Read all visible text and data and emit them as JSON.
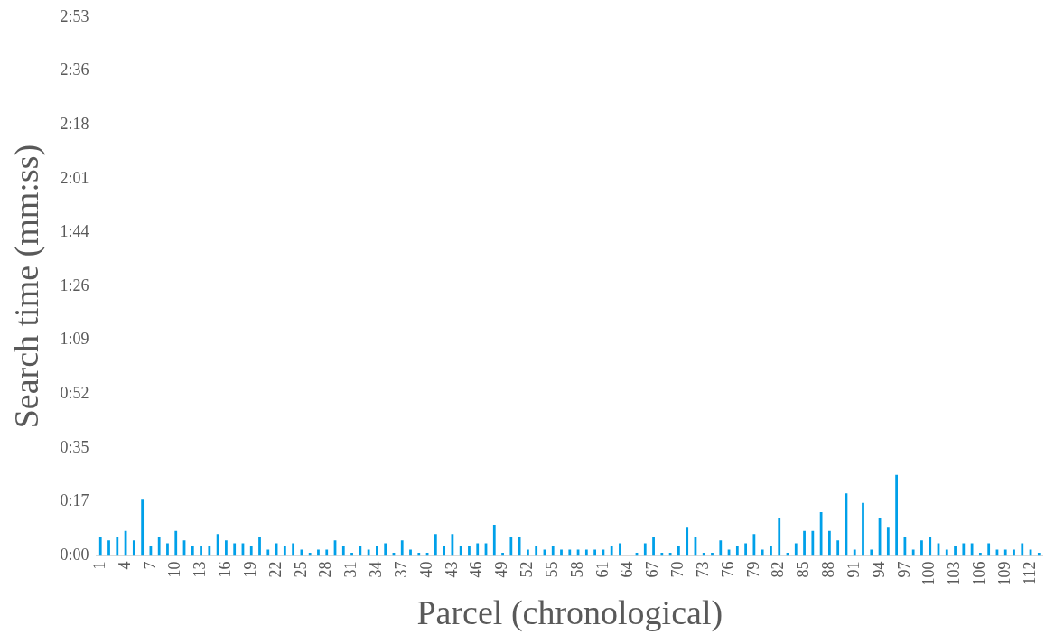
{
  "chart_data": {
    "type": "bar",
    "xlabel": "Parcel (chronological)",
    "ylabel": "Search time (mm:ss)",
    "categories": [
      "1",
      null,
      null,
      "4",
      null,
      null,
      "7",
      null,
      null,
      "10",
      null,
      null,
      "13",
      null,
      null,
      "16",
      null,
      null,
      "19",
      null,
      null,
      "22",
      null,
      null,
      "25",
      null,
      null,
      "28",
      null,
      null,
      "31",
      null,
      null,
      "34",
      null,
      null,
      "37",
      null,
      null,
      "40",
      null,
      null,
      "43",
      null,
      null,
      "46",
      null,
      null,
      "49",
      null,
      null,
      "52",
      null,
      null,
      "55",
      null,
      null,
      "58",
      null,
      null,
      "61",
      null,
      null,
      "64",
      null,
      null,
      "67",
      null,
      null,
      "70",
      null,
      null,
      "73",
      null,
      null,
      "76",
      null,
      null,
      "79",
      null,
      null,
      "82",
      null,
      null,
      "85",
      null,
      null,
      "88",
      null,
      null,
      "91",
      null,
      null,
      "94",
      null,
      null,
      "97",
      null,
      null,
      "100",
      null,
      null,
      "103",
      null,
      null,
      "106",
      null,
      null,
      "109",
      null,
      null,
      "112",
      null
    ],
    "values": [
      6,
      5,
      6,
      8,
      5,
      18,
      3,
      6,
      4,
      8,
      5,
      3,
      3,
      3,
      7,
      5,
      4,
      4,
      3,
      6,
      2,
      4,
      3,
      4,
      2,
      1,
      2,
      2,
      5,
      3,
      1,
      3,
      2,
      3,
      4,
      1,
      5,
      2,
      1,
      1,
      7,
      3,
      7,
      3,
      3,
      4,
      4,
      10,
      1,
      6,
      6,
      2,
      3,
      2,
      3,
      2,
      2,
      2,
      2,
      2,
      2,
      3,
      4,
      0,
      1,
      4,
      6,
      1,
      1,
      3,
      9,
      6,
      1,
      1,
      5,
      2,
      3,
      4,
      7,
      2,
      3,
      12,
      1,
      4,
      8,
      8,
      14,
      8,
      5,
      20,
      2,
      17,
      2,
      12,
      9,
      26,
      6,
      2,
      5,
      6,
      4,
      2,
      3,
      4,
      4,
      1,
      4,
      2,
      2,
      2,
      4,
      2,
      1
    ],
    "color": "#00a0e9",
    "ylim": [
      0,
      172.8
    ],
    "yticks": [
      {
        "value": 0,
        "label": "0:00"
      },
      {
        "value": 17.28,
        "label": "0:17"
      },
      {
        "value": 34.56,
        "label": "0:35"
      },
      {
        "value": 51.84,
        "label": "0:52"
      },
      {
        "value": 69.12,
        "label": "1:09"
      },
      {
        "value": 86.4,
        "label": "1:26"
      },
      {
        "value": 103.68,
        "label": "1:44"
      },
      {
        "value": 120.96,
        "label": "2:01"
      },
      {
        "value": 138.24,
        "label": "2:18"
      },
      {
        "value": 155.52,
        "label": "2:36"
      },
      {
        "value": 172.8,
        "label": "2:53"
      }
    ],
    "grid": false,
    "legend": false
  }
}
